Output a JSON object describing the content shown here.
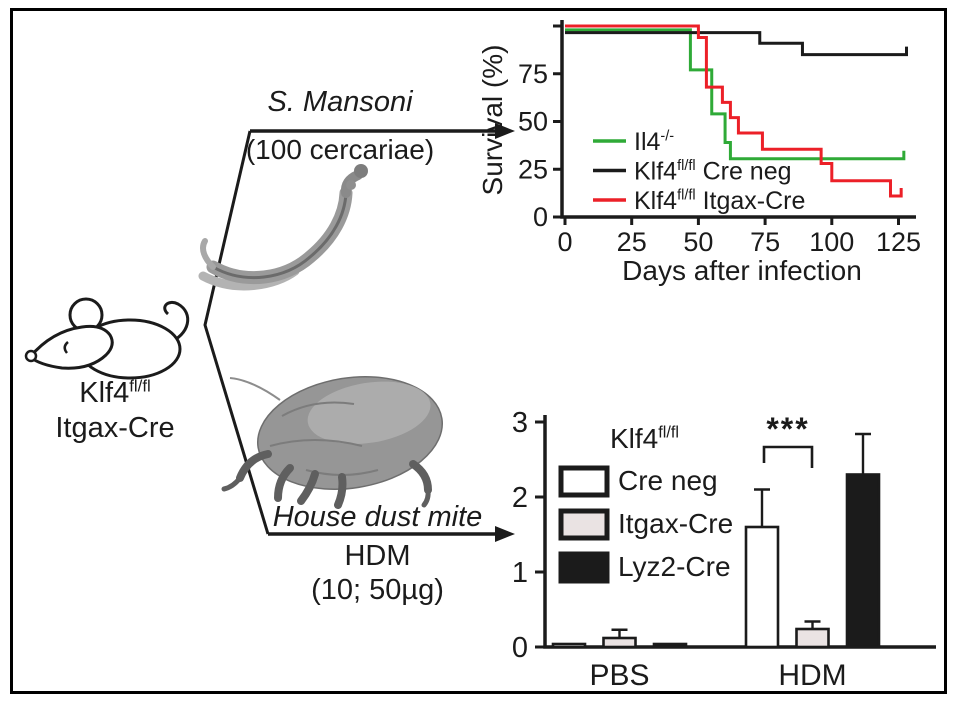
{
  "figure_labels": {
    "mouse": {
      "base": "Klf4",
      "sup": "fl/fl",
      "line2": "Itgax-Cre"
    },
    "top_pathway": {
      "name": "S. Mansoni",
      "dose": "(100 cercariae)"
    },
    "bottom_pathway": {
      "name": "House dust mite",
      "abbrev": "HDM",
      "dose": "(10; 50µg)"
    }
  },
  "images": {
    "mouse": "mouse-line-drawing",
    "worm": "schistosome-worm-photo",
    "mite": "dust-mite-sem-photo"
  },
  "colors": {
    "line_green": "#2faa37",
    "line_red": "#ec2028",
    "ink": "#1b1b1b",
    "bar_gray": "#eae3e3",
    "bar_white": "#ffffff",
    "bar_black": "#1b1b1b"
  },
  "chart_data": [
    {
      "type": "line",
      "variant": "kaplan-meier-step",
      "title": "",
      "xlabel": "Days after infection",
      "ylabel": "Survival (%)",
      "xlim": [
        0,
        130
      ],
      "ylim": [
        0,
        100
      ],
      "xticks": [
        0,
        25,
        50,
        75,
        100,
        125
      ],
      "yticks": [
        0,
        25,
        50,
        75,
        100
      ],
      "yticks_labeled": [
        0,
        25,
        50,
        75
      ],
      "grid": false,
      "legend_position": "inside-lower-left",
      "series": [
        {
          "label_base": "Il4",
          "label_sup": "-/-",
          "label_rest": "",
          "color": "#2faa37",
          "end_tick": true,
          "points": [
            [
              0,
              98
            ],
            [
              47,
              98
            ],
            [
              47,
              77
            ],
            [
              55,
              77
            ],
            [
              55,
              54
            ],
            [
              60,
              54
            ],
            [
              60,
              39
            ],
            [
              62,
              39
            ],
            [
              62,
              30.5
            ],
            [
              127,
              30.5
            ]
          ]
        },
        {
          "label_base": "Klf4",
          "label_sup": "fl/fl",
          "label_rest": " Cre neg",
          "color": "#1b1b1b",
          "end_tick": true,
          "points": [
            [
              0,
              96.5
            ],
            [
              73,
              96.5
            ],
            [
              73,
              91
            ],
            [
              89,
              91
            ],
            [
              89,
              85
            ],
            [
              128,
              85
            ]
          ]
        },
        {
          "label_base": "Klf4",
          "label_sup": "fl/fl",
          "label_rest": " Itgax-Cre",
          "color": "#ec2028",
          "end_tick": true,
          "points": [
            [
              0,
              100
            ],
            [
              50,
              100
            ],
            [
              50,
              94
            ],
            [
              53,
              94
            ],
            [
              53,
              68
            ],
            [
              59,
              68
            ],
            [
              59,
              60
            ],
            [
              62,
              60
            ],
            [
              62,
              52
            ],
            [
              65,
              52
            ],
            [
              65,
              44
            ],
            [
              74,
              44
            ],
            [
              74,
              35.5
            ],
            [
              96,
              35.5
            ],
            [
              96,
              28
            ],
            [
              100,
              28
            ],
            [
              100,
              19
            ],
            [
              122,
              19
            ],
            [
              122,
              11
            ],
            [
              126,
              11
            ]
          ]
        }
      ]
    },
    {
      "type": "bar",
      "title": "",
      "xlabel": "",
      "ylabel": "",
      "categories": [
        "PBS",
        "HDM"
      ],
      "yticks": [
        0,
        1,
        2,
        3
      ],
      "ylim": [
        0,
        3
      ],
      "grid": false,
      "legend_title_base": "Klf4",
      "legend_title_sup": "fl/fl",
      "series": [
        {
          "name": "Cre neg",
          "fill": "#ffffff",
          "values": [
            0.04,
            1.6
          ],
          "errors": [
            0,
            0.5
          ]
        },
        {
          "name": "Itgax-Cre",
          "fill": "#eae3e3",
          "values": [
            0.12,
            0.24
          ],
          "errors": [
            0.11,
            0.1
          ]
        },
        {
          "name": "Lyz2-Cre",
          "fill": "#1b1b1b",
          "values": [
            0.04,
            2.3
          ],
          "errors": [
            0,
            0.54
          ]
        }
      ],
      "significance": {
        "label": "***",
        "group": "HDM",
        "between": [
          "Cre neg",
          "Itgax-Cre"
        ]
      }
    }
  ]
}
